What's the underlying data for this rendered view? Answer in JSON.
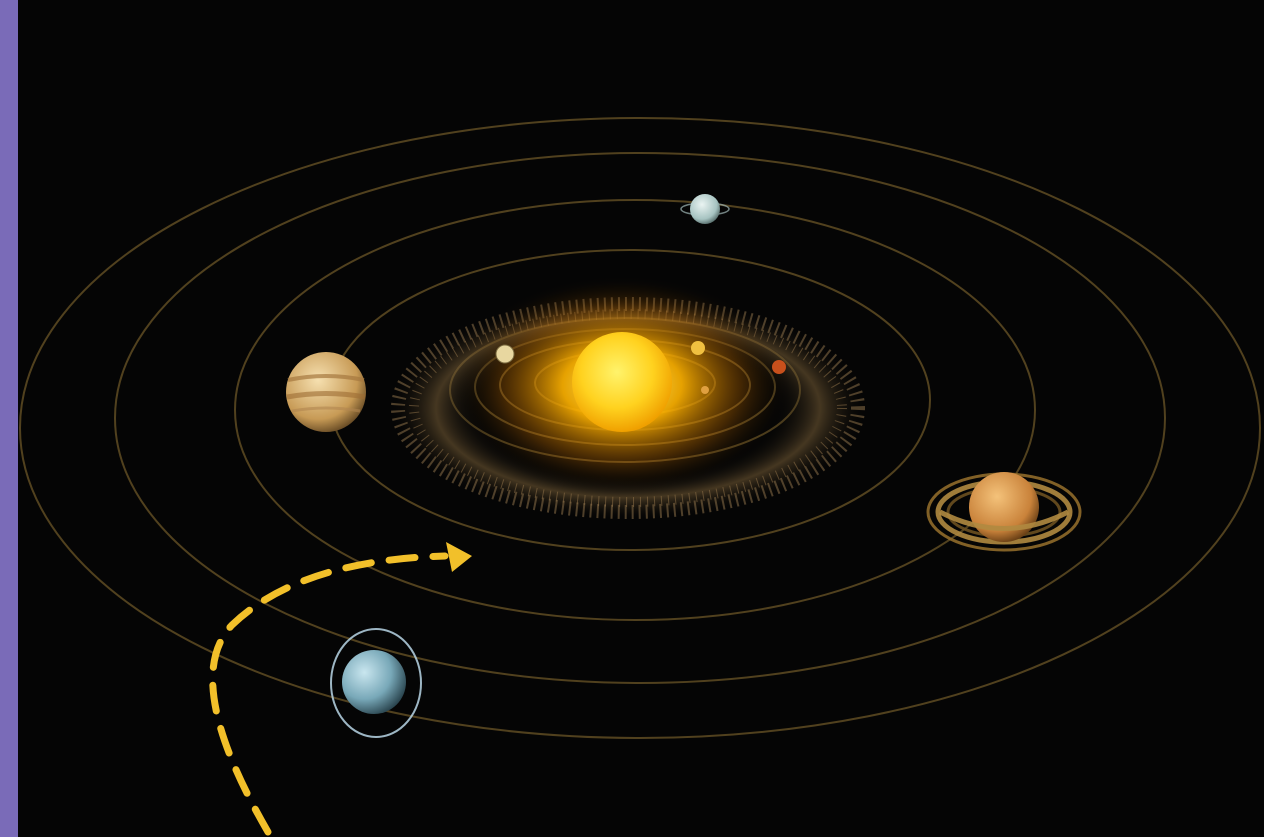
{
  "scene": {
    "description_free": true,
    "colors": {
      "space_background": "#050505",
      "left_band": "#7a6bb8",
      "orbit_line": "#6b5527",
      "arrow": "#f2c02a",
      "sun_core": "#ffd21f",
      "sun_glow": "#ff9a00",
      "asteroid_belt": "#8a7048",
      "highlight_ring": "#b9d6e6"
    },
    "icons": {
      "sun": "sun-icon",
      "jupiter": "jupiter-icon",
      "saturn": "saturn-icon",
      "uranus": "uranus-icon",
      "neptune": "neptune-icon",
      "mercury": "mercury-icon",
      "venus": "venus-icon",
      "earth": "earth-icon",
      "mars": "mars-icon",
      "asteroid_belt": "asteroid-belt-icon",
      "trajectory_arrow": "dashed-trajectory-arrow-icon",
      "highlight_ring": "highlight-ring-icon"
    }
  }
}
